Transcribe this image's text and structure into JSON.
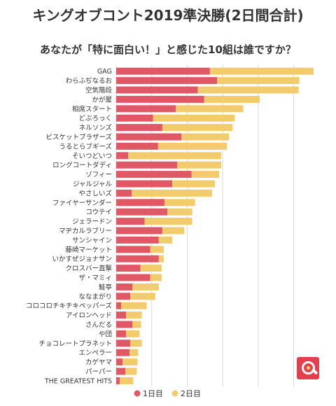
{
  "colors": {
    "day1": "#e05766",
    "day2": "#f2cc6c",
    "grid": "#d9d9d9",
    "text": "#333333"
  },
  "logo_icon": "magnifier-logo-icon",
  "chart_data": {
    "type": "bar",
    "orientation": "horizontal",
    "stacked": true,
    "title": "キングオブコント2019準決勝(2日間合計)",
    "subtitle": "あなたが「特に面白い！」と感じた10組は誰ですか？",
    "categories": [
      "GAG",
      "わらふぢなるお",
      "空気階段",
      "かが屋",
      "相席スタート",
      "どぶろっく",
      "ネルソンズ",
      "ビスケットブラザーズ",
      "うるとらブギーズ",
      "そいつどいつ",
      "ロングコートダディ",
      "ゾフィー",
      "ジャルジャル",
      "やさしいズ",
      "ファイヤーサンダー",
      "コウテイ",
      "ジェラードン",
      "マヂカルラブリー",
      "サンシャイン",
      "藤崎マーケット",
      "いかすぜジョナサン",
      "クロスバー直撃",
      "ザ・マミィ",
      "鮭亭",
      "ななまがり",
      "コロコロチキチキペッパーズ",
      "アイロンヘッド",
      "さんだる",
      "や団",
      "チョコレートプラネット",
      "エンペラー",
      "カゲヤマ",
      "パーパー",
      "THE GREATEST HITS"
    ],
    "series": [
      {
        "name": "1日目",
        "values": [
          132,
          142,
          115,
          124,
          84,
          52,
          65,
          92,
          59,
          17,
          86,
          106,
          79,
          22,
          68,
          72,
          40,
          65,
          60,
          48,
          60,
          34,
          48,
          23,
          20,
          7,
          14,
          23,
          14,
          20,
          19,
          9,
          13,
          5
        ]
      },
      {
        "name": "2日目",
        "values": [
          146,
          116,
          142,
          78,
          95,
          115,
          99,
          67,
          97,
          131,
          62,
          39,
          60,
          113,
          43,
          35,
          67,
          31,
          19,
          19,
          7,
          30,
          16,
          37,
          35,
          36,
          22,
          12,
          19,
          16,
          12,
          21,
          16,
          19
        ]
      }
    ],
    "xlim": [
      0,
      280
    ],
    "grid": true,
    "legend": "bottom"
  }
}
